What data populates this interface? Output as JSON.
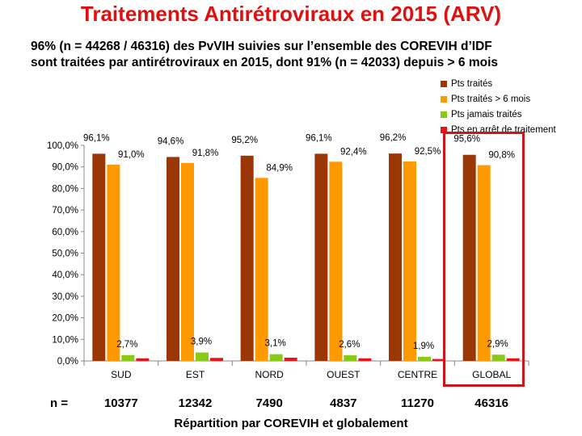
{
  "title": "Traitements Antirétroviraux en 2015 (ARV)",
  "subtitle_line1": "96% (n = 44268 / 46316) des PvVIH suivies sur l’ensemble des COREVIH d’IDF",
  "subtitle_line2": "sont traitées par antirétroviraux en 2015, dont 91% (n = 42033) depuis > 6 mois",
  "n_prefix": "n =",
  "n_values": [
    "10377",
    "12342",
    "7490",
    "4837",
    "11270",
    "46316"
  ],
  "chart_data": {
    "type": "bar",
    "title": "Traitements Antirétroviraux en 2015 (ARV)",
    "xlabel": "Répartition par COREVIH et globalement",
    "ylabel": "",
    "ylim": [
      0,
      100
    ],
    "yticks": [
      "0,0%",
      "10,0%",
      "20,0%",
      "30,0%",
      "40,0%",
      "50,0%",
      "60,0%",
      "70,0%",
      "80,0%",
      "90,0%",
      "100,0%"
    ],
    "categories": [
      "SUD",
      "EST",
      "NORD",
      "OUEST",
      "CENTRE",
      "GLOBAL"
    ],
    "highlighted_category": "GLOBAL",
    "legend_position": "top-right",
    "series": [
      {
        "name": "Pts traités",
        "color": "#9b3606",
        "values": [
          96.1,
          94.6,
          95.2,
          96.1,
          96.2,
          95.6
        ],
        "labels": [
          "96,1%",
          "94,6%",
          "95,2%",
          "96,1%",
          "96,2%",
          "95,6%"
        ]
      },
      {
        "name": "Pts traités > 6 mois",
        "color": "#ff9900",
        "values": [
          91.0,
          91.8,
          84.9,
          92.4,
          92.5,
          90.8
        ],
        "labels": [
          "91,0%",
          "91,8%",
          "84,9%",
          "92,4%",
          "92,5%",
          "90,8%"
        ]
      },
      {
        "name": "Pts jamais traités",
        "color": "#8ac914",
        "values": [
          2.7,
          3.9,
          3.1,
          2.6,
          1.9,
          2.9
        ],
        "labels": [
          "2,7%",
          "3,9%",
          "3,1%",
          "2,6%",
          "1,9%",
          "2,9%"
        ]
      },
      {
        "name": "Pts en arrêt de traitement",
        "color": "#e8141a",
        "values": [
          1.2,
          1.4,
          1.5,
          1.2,
          0.9,
          1.2
        ],
        "labels": []
      }
    ]
  }
}
